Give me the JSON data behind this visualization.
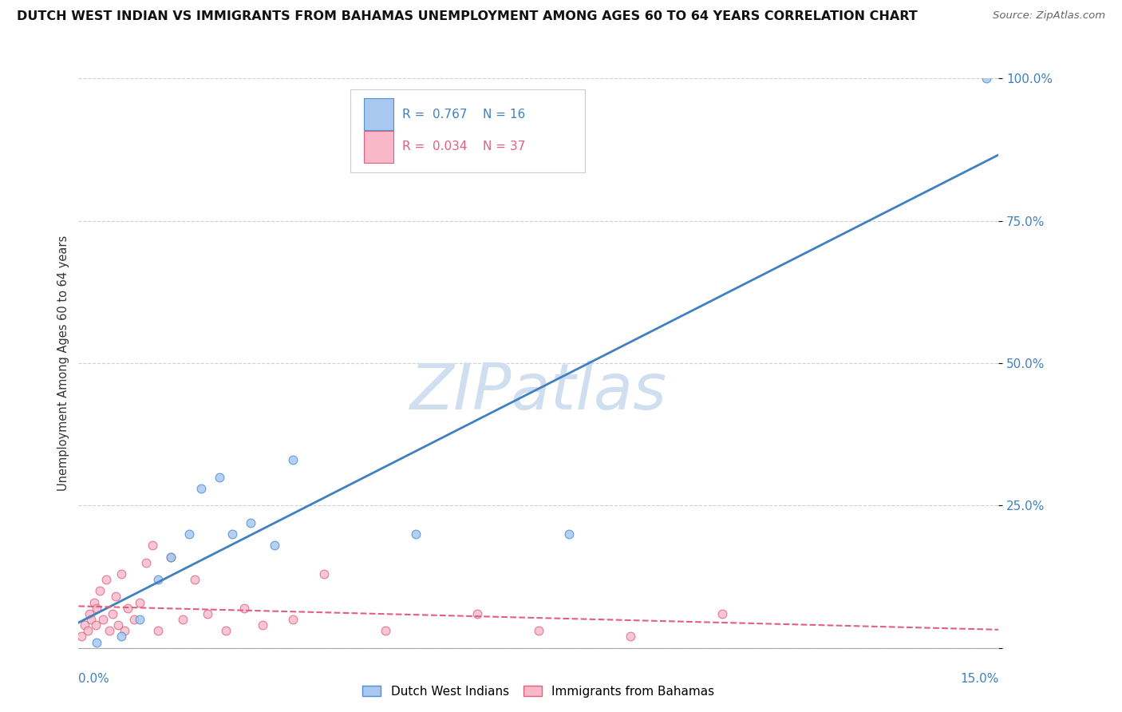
{
  "title": "DUTCH WEST INDIAN VS IMMIGRANTS FROM BAHAMAS UNEMPLOYMENT AMONG AGES 60 TO 64 YEARS CORRELATION CHART",
  "source": "Source: ZipAtlas.com",
  "ylabel_label": "Unemployment Among Ages 60 to 64 years",
  "xmin": 0.0,
  "xmax": 15.0,
  "ymin": 0.0,
  "ymax": 100.0,
  "ytick_vals": [
    0,
    25,
    50,
    75,
    100
  ],
  "ytick_labels": [
    "",
    "25.0%",
    "50.0%",
    "75.0%",
    "100.0%"
  ],
  "series1_label": "Dutch West Indians",
  "series2_label": "Immigrants from Bahamas",
  "blue_scatter_color": "#a8c8f0",
  "blue_edge_color": "#5090d0",
  "pink_scatter_color": "#f8b8c8",
  "pink_edge_color": "#e06080",
  "blue_line_color": "#4080c0",
  "pink_line_color": "#e06080",
  "watermark_color": "#d0dff0",
  "grid_color": "#cccccc",
  "bg_color": "#ffffff",
  "right_label_color": "#4080c0",
  "blue_x": [
    0.3,
    0.7,
    1.0,
    1.3,
    1.5,
    1.8,
    2.0,
    2.3,
    2.5,
    2.8,
    3.2,
    3.5,
    5.5,
    8.0,
    14.8
  ],
  "blue_y": [
    1,
    2,
    5,
    12,
    16,
    20,
    28,
    30,
    20,
    22,
    18,
    33,
    20,
    20,
    100
  ],
  "pink_x": [
    0.05,
    0.1,
    0.15,
    0.18,
    0.2,
    0.25,
    0.28,
    0.3,
    0.35,
    0.4,
    0.45,
    0.5,
    0.55,
    0.6,
    0.65,
    0.7,
    0.75,
    0.8,
    0.9,
    1.0,
    1.1,
    1.2,
    1.3,
    1.5,
    1.7,
    1.9,
    2.1,
    2.4,
    2.7,
    3.0,
    3.5,
    4.0,
    5.0,
    6.5,
    7.5,
    9.0,
    10.5
  ],
  "pink_y": [
    2,
    4,
    3,
    6,
    5,
    8,
    4,
    7,
    10,
    5,
    12,
    3,
    6,
    9,
    4,
    13,
    3,
    7,
    5,
    8,
    15,
    18,
    3,
    16,
    5,
    12,
    6,
    3,
    7,
    4,
    5,
    13,
    3,
    6,
    3,
    2,
    6
  ],
  "scatter_size": 60
}
